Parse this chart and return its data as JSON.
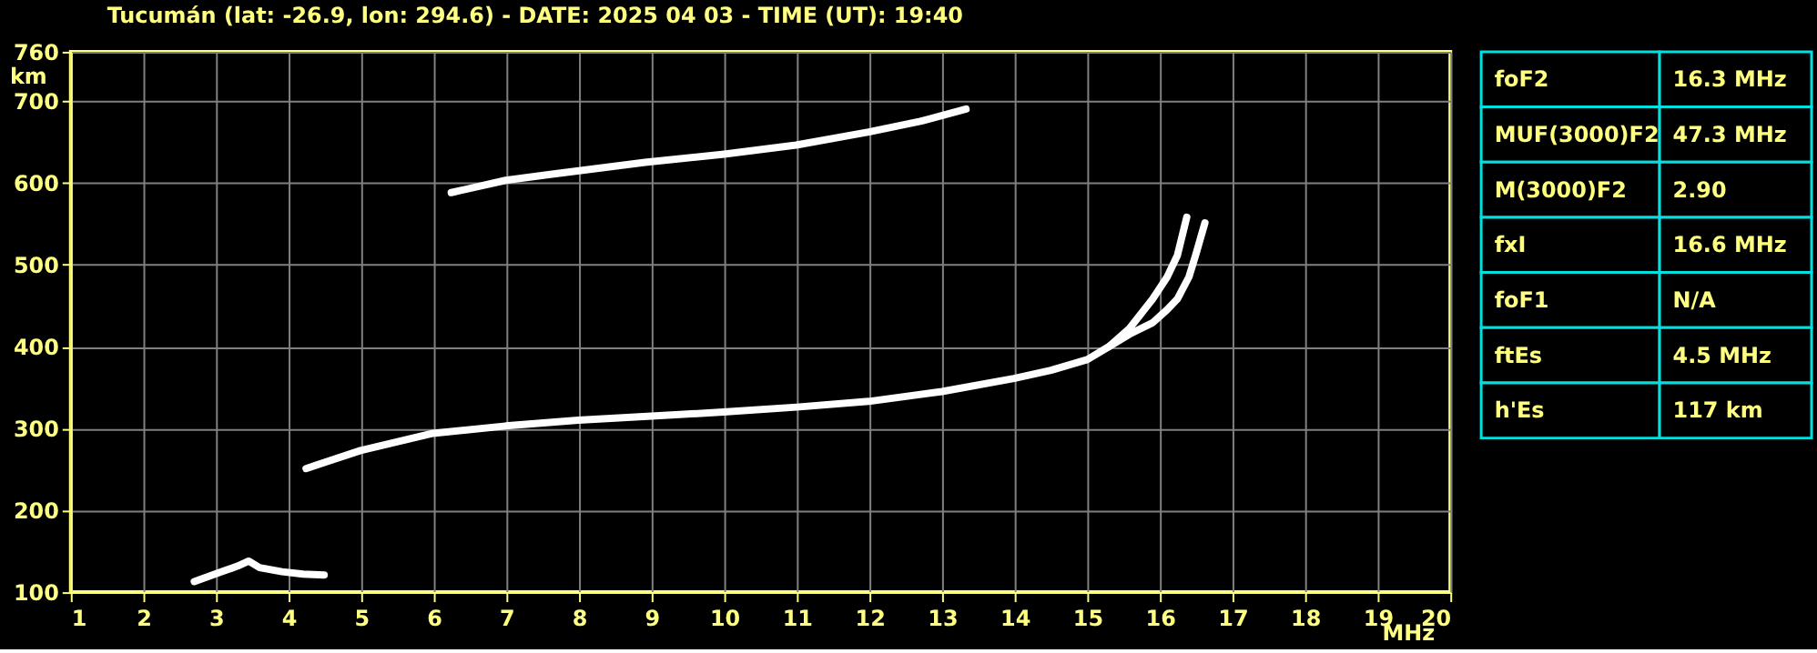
{
  "chart_data": [
    {
      "type": "line",
      "title": "Tucumán (lat: -26.9, lon: 294.6) - DATE: 2025 04 03 - TIME (UT): 19:40",
      "xlabel": "MHz",
      "ylabel": "km",
      "xlim": [
        1,
        20
      ],
      "xticks": [
        1,
        2,
        3,
        4,
        5,
        6,
        7,
        8,
        9,
        10,
        11,
        12,
        13,
        14,
        15,
        16,
        17,
        18,
        19,
        20
      ],
      "ylim": [
        100,
        760
      ],
      "yticks": [
        100,
        200,
        300,
        400,
        500,
        600,
        700,
        760
      ],
      "grid": true,
      "marker": "none",
      "line_style": "solid",
      "series": [
        {
          "color": "#ffffff",
          "x": [
            4.24,
            4.99,
            5.99,
            6.99,
            7.99,
            9.0,
            9.99,
            11.0,
            11.99,
            13.0,
            13.99,
            14.5,
            15.0,
            15.3,
            15.58,
            15.9,
            16.1,
            16.24,
            16.37
          ],
          "values": [
            251,
            273,
            294,
            303,
            310,
            315,
            320,
            326,
            333,
            345,
            361,
            371,
            384,
            400,
            422,
            458,
            485,
            511,
            558
          ]
        },
        {
          "color": "#ffffff",
          "x": [
            15.3,
            15.58,
            15.9,
            16.1,
            16.24,
            16.4,
            16.49,
            16.62
          ],
          "values": [
            400,
            415,
            429,
            445,
            458,
            485,
            511,
            551
          ]
        },
        {
          "color": "#ffffff",
          "x": [
            6.24,
            6.99,
            7.58,
            8.91,
            10.0,
            10.99,
            11.99,
            12.7,
            13.33
          ],
          "values": [
            588,
            603,
            610,
            625,
            635,
            646,
            662,
            675,
            690
          ]
        },
        {
          "color": "#ffffff",
          "x": [
            2.7,
            3.08,
            3.3,
            3.45,
            3.6,
            3.91,
            4.2,
            4.49
          ],
          "values": [
            113,
            125,
            132,
            138,
            130,
            125,
            122,
            121
          ]
        }
      ]
    },
    {
      "type": "other",
      "annotations": [
        "foF2",
        "16.3 MHz",
        "MUF(3000)F2",
        "47.3 MHz",
        "M(3000)F2",
        "2.90",
        "fxI",
        "16.6 MHz",
        "foF1",
        "N/A",
        "ftEs",
        "4.5 MHz",
        "h'Es",
        "117 km"
      ]
    }
  ]
}
